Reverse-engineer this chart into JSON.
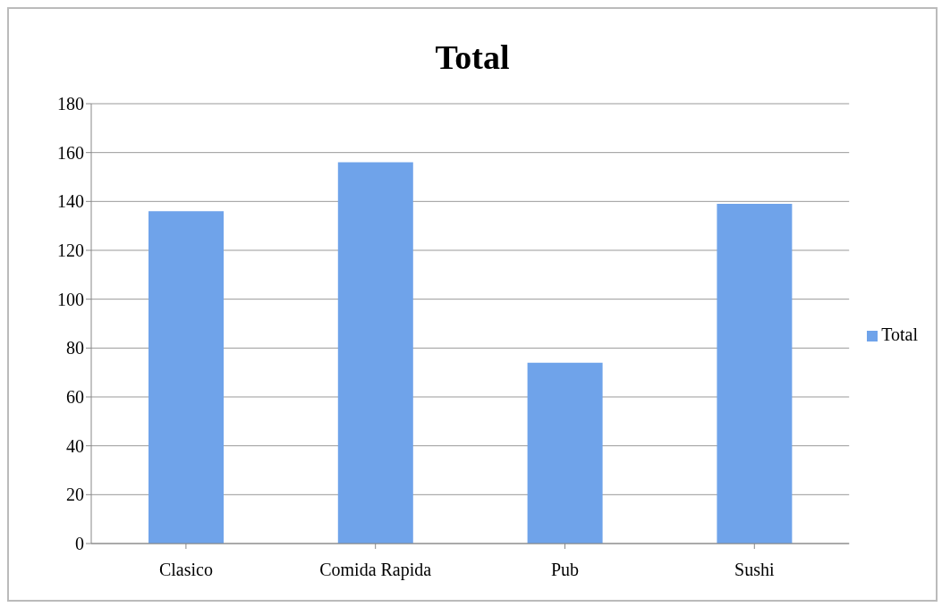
{
  "chart_data": {
    "type": "bar",
    "title": "Total",
    "categories": [
      "Clasico",
      "Comida Rapida",
      "Pub",
      "Sushi"
    ],
    "series": [
      {
        "name": "Total",
        "color": "#6fa3ea",
        "values": [
          136,
          156,
          74,
          139
        ]
      }
    ],
    "ylim": [
      0,
      180
    ],
    "yticks": [
      0,
      20,
      40,
      60,
      80,
      100,
      120,
      140,
      160,
      180
    ],
    "grid": "y",
    "legend": "right"
  }
}
